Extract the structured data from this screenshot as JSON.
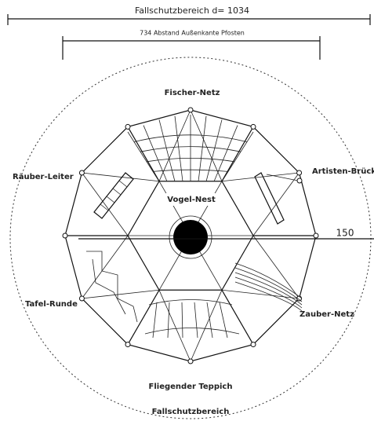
{
  "dimensions": {
    "outer": "Fallschutzbereich d= 1034",
    "inner": "734 Abstand Außenkante Pfosten",
    "offset": "150"
  },
  "labels": {
    "top": "Fischer-Netz",
    "left": "Räuber-Leiter",
    "right": "Artisten-Brück",
    "center": "Vogel-Nest",
    "lower_left": "Tafel-Runde",
    "lower_right": "Zauber-Netz",
    "bottom": "Fliegender Teppich",
    "zone": "Fallschutzbereich"
  }
}
